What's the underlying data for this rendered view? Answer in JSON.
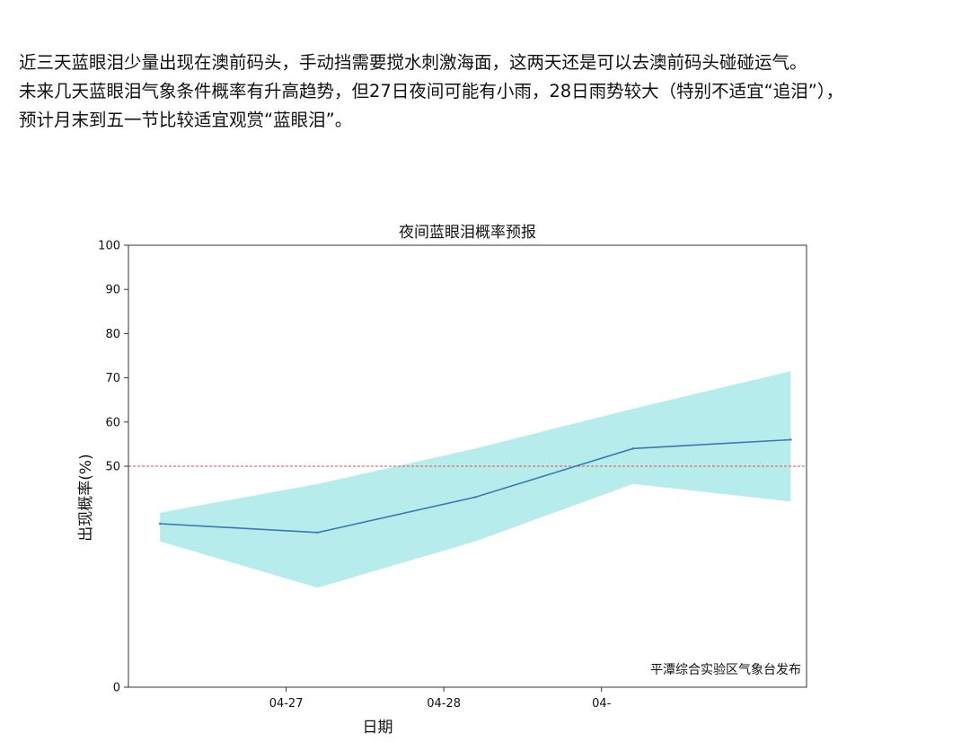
{
  "paragraph": {
    "lines": [
      "近三天蓝眼泪少量出现在澳前码头，手动挡需要搅水刺激海面，这两天还是可以去澳前码头碰碰运气。",
      "未来几天蓝眼泪气象条件概率有升高趋势，但27日夜间可能有小雨，28日雨势较大（特别不适宜“追泪”），",
      "预计月末到五一节比较适宜观赏“蓝眼泪”。"
    ]
  },
  "colors": {
    "line": "#3a78b3",
    "band": "#b7ecec",
    "threshold": "#d9534f",
    "axis": "#333333",
    "text": "#111111"
  },
  "chart_data": {
    "type": "line",
    "title": "夜间蓝眼泪概率预报",
    "xlabel": "日期",
    "ylabel": "出现概率(%)",
    "ylim": [
      0,
      100
    ],
    "xlim": [
      0,
      4.3
    ],
    "yticks": [
      0,
      50,
      60,
      70,
      80,
      90,
      100
    ],
    "xticks": [
      {
        "x": 1,
        "label": "04-27"
      },
      {
        "x": 2,
        "label": "04-28"
      },
      {
        "x": 3,
        "label": "04-"
      }
    ],
    "series": [
      {
        "x": [
          0.2,
          1.2,
          2.2,
          3.2,
          4.2
        ],
        "values": [
          37,
          35,
          43,
          54,
          56
        ]
      }
    ],
    "band": {
      "lower": [
        33,
        22.5,
        33,
        46,
        42
      ],
      "upper": [
        39.5,
        46,
        54,
        63,
        71.5
      ]
    },
    "threshold": 50,
    "annotation": "平潭综合实验区气象台发布",
    "grid": false
  }
}
